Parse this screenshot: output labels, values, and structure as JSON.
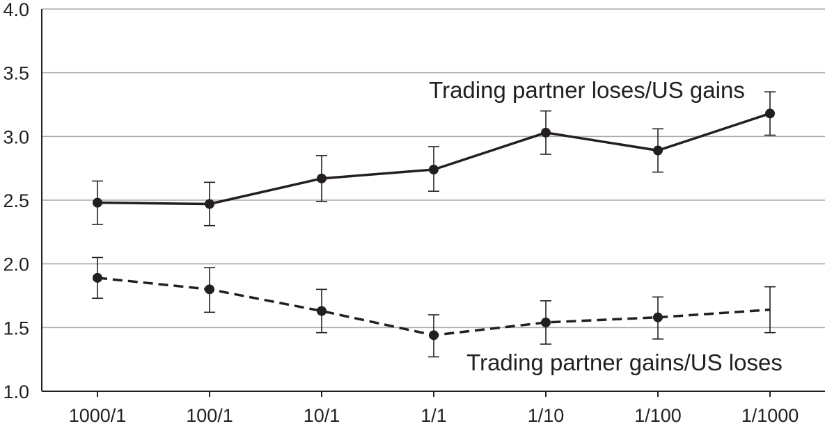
{
  "chart_data": {
    "type": "line",
    "title": "",
    "xlabel": "",
    "ylabel": "",
    "categories": [
      "1000/1",
      "100/1",
      "10/1",
      "1/1",
      "1/10",
      "1/100",
      "1/1000"
    ],
    "ylim": [
      1.0,
      4.0
    ],
    "yticks": [
      "1.0",
      "1.5",
      "2.0",
      "2.5",
      "3.0",
      "3.5",
      "4.0"
    ],
    "grid": true,
    "series": [
      {
        "name": "Trading partner loses/US gains",
        "style": "solid",
        "values": [
          2.48,
          2.47,
          2.67,
          2.74,
          3.03,
          2.89,
          3.18
        ],
        "err_low": [
          2.31,
          2.3,
          2.49,
          2.57,
          2.86,
          2.72,
          3.01
        ],
        "err_high": [
          2.65,
          2.64,
          2.85,
          2.92,
          3.2,
          3.06,
          3.35
        ]
      },
      {
        "name": "Trading partner gains/US loses",
        "style": "dashed",
        "values": [
          1.89,
          1.8,
          1.63,
          1.44,
          1.54,
          1.58,
          1.64
        ],
        "err_low": [
          1.73,
          1.62,
          1.46,
          1.27,
          1.37,
          1.41,
          1.46
        ],
        "err_high": [
          2.05,
          1.97,
          1.8,
          1.6,
          1.71,
          1.74,
          1.82
        ]
      }
    ],
    "annotations": {
      "upper": "Trading partner loses/US gains",
      "lower": "Trading partner gains/US loses"
    },
    "colors": {
      "line": "#231f20",
      "grid": "#a7a9ac"
    }
  }
}
